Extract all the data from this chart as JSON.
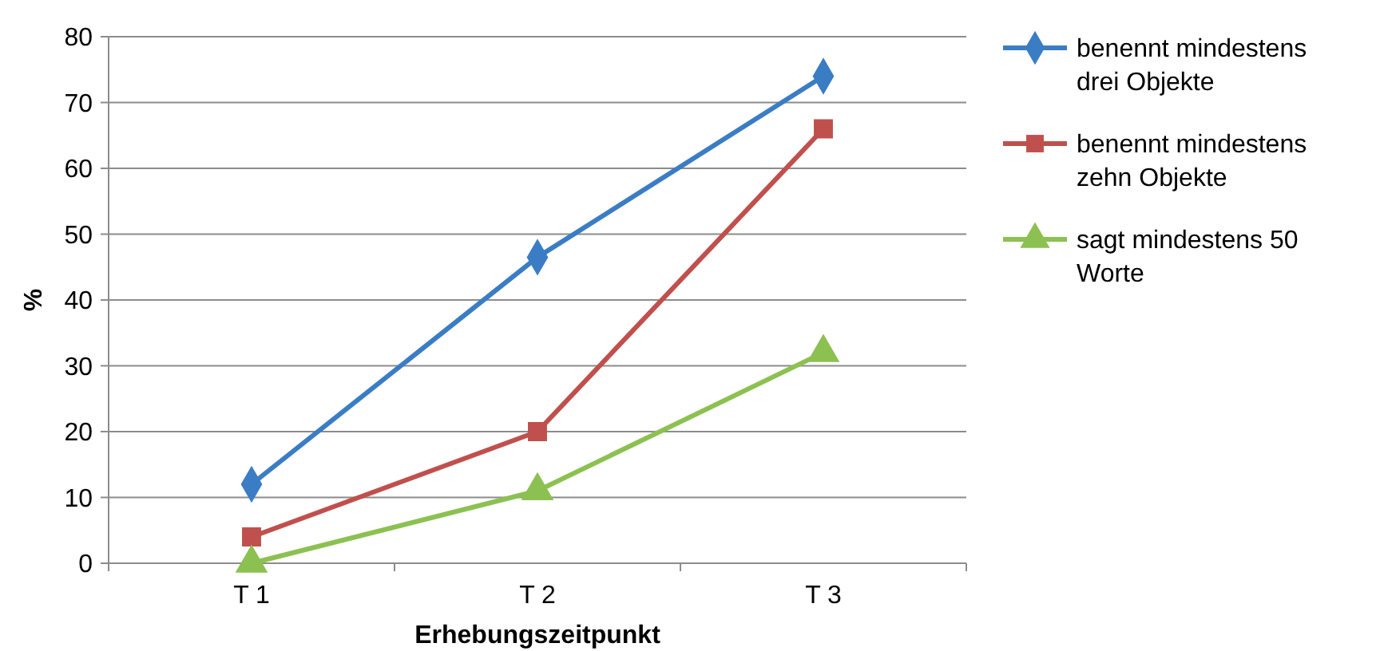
{
  "chart_data": {
    "type": "line",
    "categories": [
      "T 1",
      "T 2",
      "T 3"
    ],
    "xlabel": "Erhebungszeitpunkt",
    "ylabel": "%",
    "ylim": [
      0,
      80
    ],
    "yticks": [
      0,
      10,
      20,
      30,
      40,
      50,
      60,
      70,
      80
    ],
    "grid": "y",
    "legend": "right",
    "series": [
      {
        "name": "benennt mindestens drei Objekte",
        "color": "#3b7dc4",
        "marker": "diamond",
        "values": [
          12,
          46.5,
          74
        ]
      },
      {
        "name": "benennt mindestens zehn Objekte",
        "color": "#c0504d",
        "marker": "square",
        "values": [
          4,
          20,
          66
        ]
      },
      {
        "name": "sagt mindestens 50 Worte",
        "color": "#8cc152",
        "marker": "triangle",
        "values": [
          0,
          11,
          32
        ]
      }
    ]
  }
}
